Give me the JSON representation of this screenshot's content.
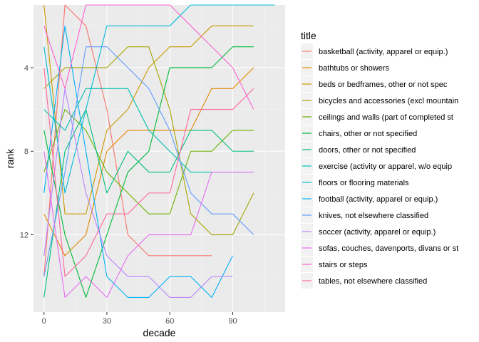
{
  "chart_data": {
    "type": "line",
    "title": "",
    "xlabel": "decade",
    "ylabel": "rank",
    "legend_title": "title",
    "legend_position": "right",
    "grid": true,
    "xlim": [
      -5,
      115
    ],
    "ylim": [
      1,
      15.7
    ],
    "y_reversed": true,
    "x_ticks": [
      0,
      30,
      60,
      90
    ],
    "y_ticks": [
      4,
      8,
      12
    ],
    "series": [
      {
        "name": "basketball (activity, apparel or equip.)",
        "color": "#F8766D",
        "x": [
          0,
          10,
          20,
          30,
          40,
          50,
          60,
          70,
          80
        ],
        "y": [
          14,
          1,
          2,
          6,
          12,
          13,
          13,
          13,
          13
        ]
      },
      {
        "name": "bathtubs or showers",
        "color": "#E58700",
        "x": [
          0,
          10,
          20,
          30,
          40,
          50,
          60,
          70,
          80,
          90,
          100
        ],
        "y": [
          11,
          13,
          12,
          8,
          7,
          7,
          7,
          7,
          5,
          5,
          4
        ]
      },
      {
        "name": "beds or bedframes, other or not spec",
        "color": "#C99800",
        "x": [
          0,
          10,
          20,
          30,
          40,
          50,
          60,
          70,
          80,
          90,
          100
        ],
        "y": [
          1,
          11,
          11,
          7,
          6,
          4,
          3,
          3,
          2,
          2,
          2
        ]
      },
      {
        "name": "bicycles and accessories (excl mountain",
        "color": "#A3A500",
        "x": [
          0,
          10,
          20,
          30,
          40,
          50,
          60,
          70,
          80,
          90,
          100
        ],
        "y": [
          5,
          4,
          4,
          4,
          3,
          3,
          6,
          11,
          12,
          12,
          10
        ]
      },
      {
        "name": "ceilings and walls (part of completed st",
        "color": "#6BB100",
        "x": [
          0,
          10,
          20,
          30,
          40,
          50,
          60,
          70,
          80,
          90,
          100
        ],
        "y": [
          9,
          6,
          7,
          9,
          10,
          11,
          11,
          8,
          8,
          7,
          7
        ]
      },
      {
        "name": "chairs, other or not specified",
        "color": "#00BA38",
        "x": [
          0,
          10,
          20,
          30,
          40,
          50,
          60,
          70,
          80,
          90,
          100
        ],
        "y": [
          7,
          12,
          15,
          12,
          9,
          8,
          4,
          4,
          4,
          3,
          3
        ]
      },
      {
        "name": "doors, other or not specified",
        "color": "#00BF7D",
        "x": [
          0,
          10,
          20,
          30,
          40,
          50,
          60,
          70,
          80,
          90,
          100
        ],
        "y": [
          15,
          8,
          6,
          10,
          8,
          9,
          9,
          7,
          7,
          8,
          8
        ]
      },
      {
        "name": "exercise (activity or apparel, w/o equip",
        "color": "#00C0AF",
        "x": [
          0,
          10,
          20,
          30,
          40,
          50,
          60,
          70,
          80,
          90,
          100
        ],
        "y": [
          6,
          7,
          5,
          5,
          5,
          7,
          8,
          9,
          9,
          9,
          9
        ]
      },
      {
        "name": "floors or flooring materials",
        "color": "#00BCD8",
        "x": [
          0,
          10,
          20,
          30,
          40,
          50,
          60,
          70,
          80,
          90,
          100,
          110
        ],
        "y": [
          3,
          10,
          6,
          2,
          2,
          2,
          2,
          1,
          1,
          1,
          1,
          1
        ]
      },
      {
        "name": "football (activity, apparel or equip.)",
        "color": "#00B0F6",
        "x": [
          0,
          10,
          20,
          30,
          40,
          50,
          60,
          70,
          80,
          90
        ],
        "y": [
          10,
          2,
          8,
          14,
          15,
          15,
          14,
          14,
          15,
          13
        ]
      },
      {
        "name": "knives, not elsewhere classified",
        "color": "#619CFF",
        "x": [
          0,
          10,
          20,
          30,
          40,
          50,
          60,
          70,
          80,
          90,
          100
        ],
        "y": [
          14,
          9,
          3,
          3,
          4,
          5,
          7,
          10,
          11,
          11,
          12
        ]
      },
      {
        "name": "soccer (activity, apparel or equip.)",
        "color": "#B983FF",
        "x": [
          0,
          10,
          20,
          30,
          40,
          50,
          60,
          70,
          80,
          90
        ],
        "y": [
          13,
          5,
          10,
          13,
          14,
          14,
          15,
          15,
          14,
          14
        ]
      },
      {
        "name": "sofas, couches, davenports, divans or st",
        "color": "#E76BF3",
        "x": [
          0,
          10,
          20,
          30,
          40,
          50,
          60,
          70,
          80,
          90,
          100
        ],
        "y": [
          8,
          15,
          14,
          15,
          13,
          12,
          12,
          12,
          9,
          9,
          9
        ]
      },
      {
        "name": "stairs or steps",
        "color": "#FD61D1",
        "x": [
          0,
          10,
          20,
          30,
          40,
          50,
          60,
          70,
          80,
          90,
          100
        ],
        "y": [
          2,
          5,
          1,
          1,
          1,
          1,
          1,
          2,
          3,
          4,
          6
        ]
      },
      {
        "name": "tables, not elsewhere classified",
        "color": "#FF67A4",
        "x": [
          0,
          10,
          20,
          30,
          40,
          50,
          60,
          70,
          80,
          90,
          100
        ],
        "y": [
          4,
          14,
          13,
          11,
          11,
          10,
          10,
          6,
          6,
          6,
          5
        ]
      }
    ]
  }
}
